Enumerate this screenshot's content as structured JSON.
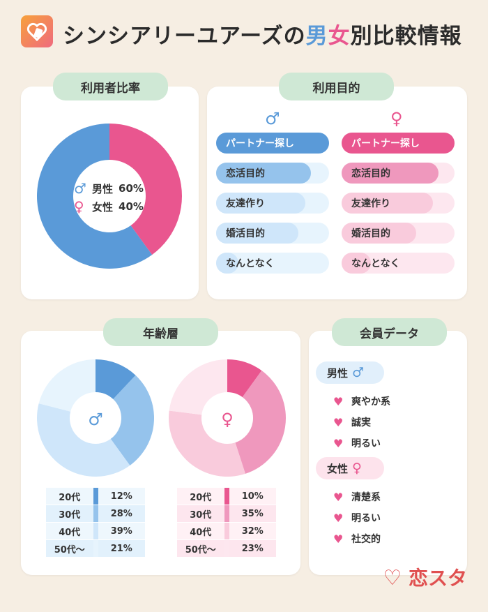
{
  "header": {
    "title_part1": "シンシアリーユアーズの",
    "title_male": "男",
    "title_female": "女",
    "title_part2": "別比較情報"
  },
  "colors": {
    "male_dark": "#5a9ad8",
    "male_mid": "#95c3ec",
    "male_light": "#cfe6fa",
    "male_lighter": "#e7f4fd",
    "female_dark": "#e9568f",
    "female_mid": "#ef98bd",
    "female_light": "#f9cbdc",
    "female_lighter": "#fde7ef"
  },
  "ratio": {
    "tag": "利用者比率",
    "male_label": "男性",
    "male_value": "60%",
    "female_label": "女性",
    "female_value": "40%"
  },
  "purpose": {
    "tag": "利用目的",
    "male_items": [
      {
        "label": "パートナー探し",
        "fill": 1.0
      },
      {
        "label": "恋活目的",
        "fill": 0.84
      },
      {
        "label": "友達作り",
        "fill": 0.79
      },
      {
        "label": "婚活目的",
        "fill": 0.73
      },
      {
        "label": "なんとなく",
        "fill": 0.2
      }
    ],
    "female_items": [
      {
        "label": "パートナー探し",
        "fill": 1.0
      },
      {
        "label": "恋活目的",
        "fill": 0.86
      },
      {
        "label": "友達作り",
        "fill": 0.81
      },
      {
        "label": "婚活目的",
        "fill": 0.66
      },
      {
        "label": "なんとなく",
        "fill": 0.26
      }
    ]
  },
  "age": {
    "tag": "年齢層",
    "male_rows": [
      {
        "label": "20代",
        "value": "12%"
      },
      {
        "label": "30代",
        "value": "28%"
      },
      {
        "label": "40代",
        "value": "39%"
      },
      {
        "label": "50代〜",
        "value": "21%"
      }
    ],
    "female_rows": [
      {
        "label": "20代",
        "value": "10%"
      },
      {
        "label": "30代",
        "value": "35%"
      },
      {
        "label": "40代",
        "value": "32%"
      },
      {
        "label": "50代〜",
        "value": "23%"
      }
    ]
  },
  "members": {
    "tag": "会員データ",
    "male_head": "男性",
    "male_items": [
      "爽やか系",
      "誠実",
      "明るい"
    ],
    "female_head": "女性",
    "female_items": [
      "清楚系",
      "明るい",
      "社交的"
    ]
  },
  "chart_data": [
    {
      "type": "pie",
      "categories": [
        "男性",
        "女性"
      ],
      "values": [
        60,
        40
      ]
    },
    {
      "type": "bar",
      "categories": [
        "パートナー探し",
        "恋活目的",
        "友達作り",
        "婚活目的",
        "なんとなく"
      ],
      "series": [
        {
          "name": "男性",
          "values": [
            100,
            84,
            79,
            73,
            20
          ]
        },
        {
          "name": "女性",
          "values": [
            100,
            86,
            81,
            66,
            26
          ]
        }
      ]
    },
    {
      "type": "pie",
      "categories": [
        "20代",
        "30代",
        "40代",
        "50代〜"
      ],
      "values": [
        12,
        28,
        39,
        21
      ]
    },
    {
      "type": "pie",
      "categories": [
        "20代",
        "30代",
        "40代",
        "50代〜"
      ],
      "values": [
        10,
        35,
        32,
        23
      ]
    }
  ],
  "brand": {
    "label": "恋スタ"
  }
}
